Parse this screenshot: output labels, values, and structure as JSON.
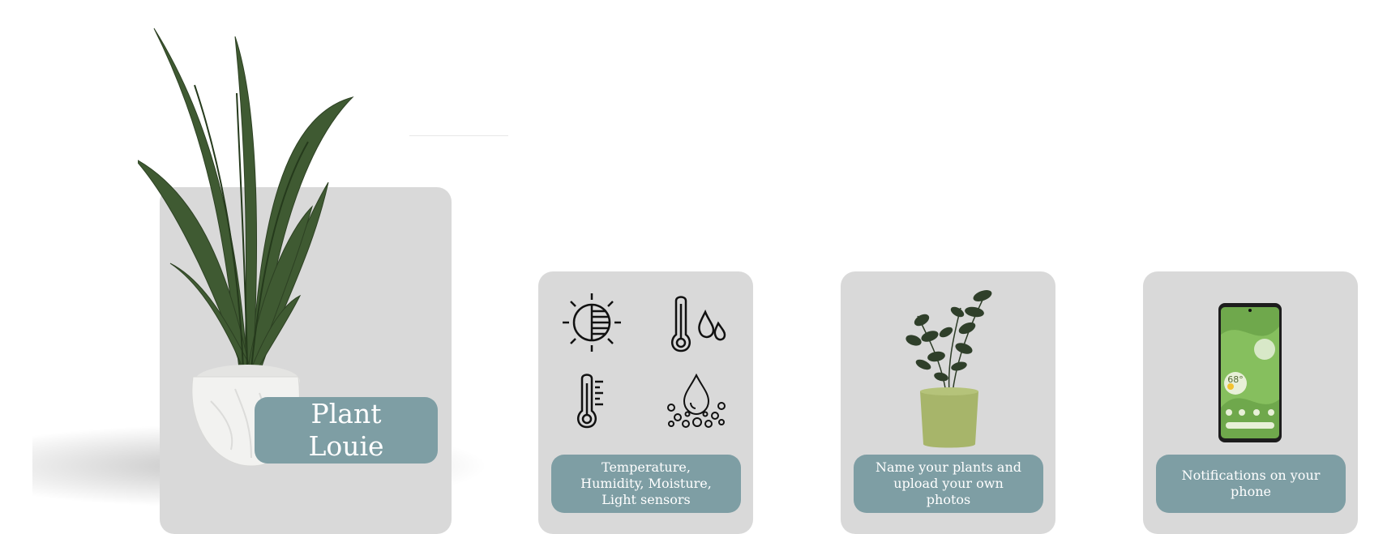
{
  "hero": {
    "title": "Plant\nLouie"
  },
  "features": [
    {
      "label": "Temperature,\nHumidity, Moisture,\nLight sensors"
    },
    {
      "label": "Name your plants and\nupload your own\nphotos"
    },
    {
      "label": "Notifications on your\nphone"
    }
  ],
  "phone": {
    "temperature": "68°"
  },
  "colors": {
    "card": "#d9d9d9",
    "label": "#7e9ea4",
    "leaf": "#3f5a32",
    "pot_white": "#f2f2f0",
    "pot_green": "#a7b56a"
  },
  "icons": [
    "half-sun-icon",
    "thermometer-drops-icon",
    "thermometer-icon",
    "moisture-drop-icon"
  ]
}
